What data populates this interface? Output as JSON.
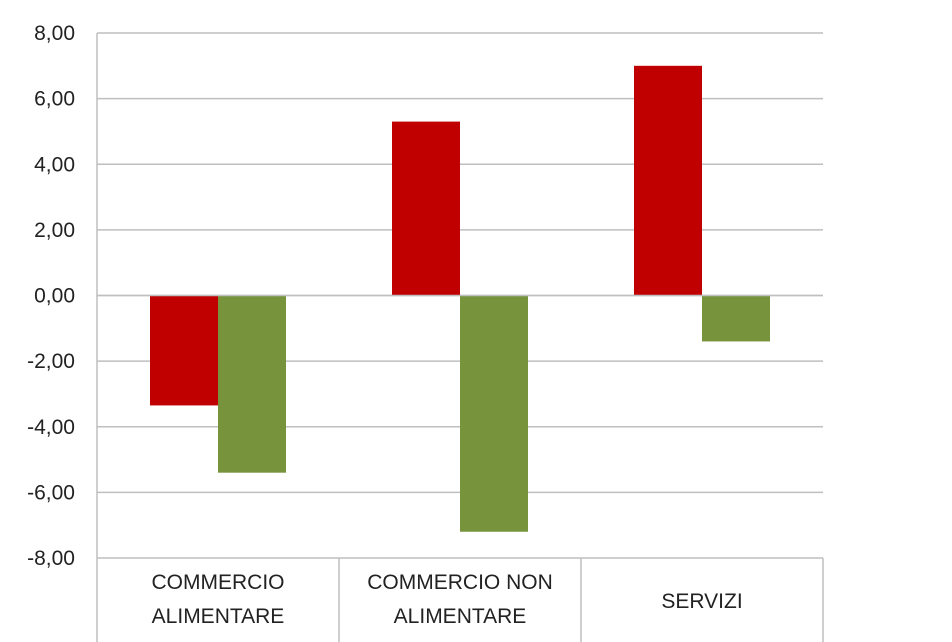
{
  "chart_data": {
    "type": "bar",
    "categories": [
      [
        "COMMERCIO",
        "ALIMENTARE"
      ],
      [
        "COMMERCIO NON",
        "ALIMENTARE"
      ],
      [
        "SERVIZI"
      ]
    ],
    "series": [
      {
        "values": [
          -3.35,
          5.3,
          7.0
        ],
        "color": "#c00000"
      },
      {
        "values": [
          -5.4,
          -7.2,
          -1.4
        ],
        "color": "#77933c"
      }
    ],
    "ylim": [
      -8,
      8
    ],
    "yticks": [
      8,
      6,
      4,
      2,
      0,
      -2,
      -4,
      -6,
      -8
    ],
    "ytick_labels": [
      "8,00",
      "6,00",
      "4,00",
      "2,00",
      "0,00",
      "-2,00",
      "-4,00",
      "-6,00",
      "-8,00"
    ],
    "grid": true,
    "title": "",
    "xlabel": "",
    "ylabel": ""
  }
}
